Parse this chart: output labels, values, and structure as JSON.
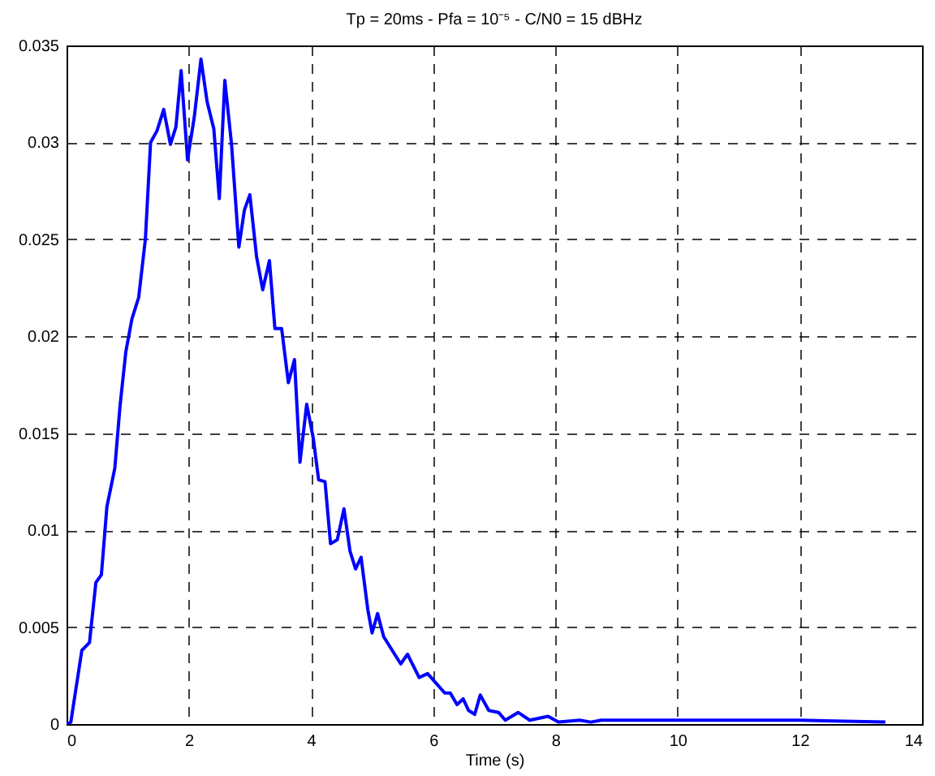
{
  "chart_data": {
    "type": "line",
    "title": "Tp = 20ms - Pfa = 10⁻⁵ - C/N0 = 15 dBHz",
    "xlabel": "Time (s)",
    "x": [
      0,
      0.07,
      0.25,
      0.375,
      0.48,
      0.57,
      0.66,
      0.79,
      0.875,
      0.97,
      1.07,
      1.18,
      1.29,
      1.375,
      1.48,
      1.59,
      1.7,
      1.79,
      1.875,
      1.98,
      2.09,
      2.2,
      2.3,
      2.41,
      2.5,
      2.59,
      2.7,
      2.82,
      2.91,
      3.0,
      3.11,
      3.21,
      3.32,
      3.41,
      3.52,
      3.63,
      3.73,
      3.82,
      3.93,
      4.04,
      4.125,
      4.23,
      4.32,
      4.43,
      4.54,
      4.64,
      4.73,
      4.82,
      4.93,
      5.0,
      5.09,
      5.19,
      5.33,
      5.47,
      5.58,
      5.77,
      5.91,
      6.05,
      6.19,
      6.28,
      6.39,
      6.49,
      6.58,
      6.68,
      6.77,
      6.91,
      7.07,
      7.18,
      7.39,
      7.58,
      7.88,
      8.05,
      8.4,
      8.58,
      8.75,
      10.25,
      12.0,
      13.4
    ],
    "values": [
      0,
      0.0001,
      0.0038,
      0.0042,
      0.0073,
      0.0077,
      0.0112,
      0.0132,
      0.0164,
      0.0192,
      0.0209,
      0.022,
      0.025,
      0.03,
      0.0306,
      0.0317,
      0.0299,
      0.0308,
      0.0337,
      0.0291,
      0.0313,
      0.0343,
      0.0321,
      0.0307,
      0.0271,
      0.0332,
      0.0299,
      0.0246,
      0.0265,
      0.0273,
      0.0241,
      0.0224,
      0.0239,
      0.0204,
      0.0204,
      0.0176,
      0.0188,
      0.0135,
      0.0165,
      0.0147,
      0.0126,
      0.0125,
      0.0093,
      0.0095,
      0.0111,
      0.0089,
      0.008,
      0.0086,
      0.0059,
      0.0047,
      0.0057,
      0.0045,
      0.0038,
      0.0031,
      0.0036,
      0.0024,
      0.0026,
      0.0021,
      0.0016,
      0.0016,
      0.001,
      0.0013,
      0.0007,
      0.0005,
      0.0015,
      0.0007,
      0.0006,
      0.0002,
      0.0006,
      0.0002,
      0.0004,
      0.0001,
      0.0002,
      0.0001,
      0.0002,
      0.0002,
      0.0002,
      0.0001
    ],
    "color": "#0000ff",
    "xlim": [
      0,
      14
    ],
    "xticks": [
      0,
      2,
      4,
      6,
      8,
      10,
      12,
      14
    ],
    "ylim": [
      0,
      0.035
    ],
    "yticks": [
      0,
      0.005,
      0.01,
      0.015,
      0.02,
      0.025,
      0.03,
      0.035
    ],
    "grid": true
  }
}
